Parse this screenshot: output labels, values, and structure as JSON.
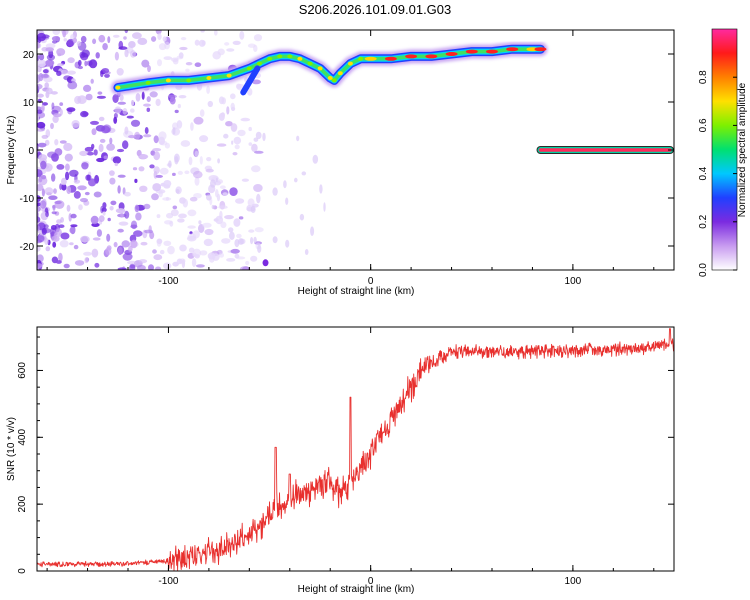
{
  "figure": {
    "title": "S206.2026.101.09.01.G03"
  },
  "chart_data": [
    {
      "type": "heatmap",
      "name": "spectrogram",
      "xlabel": "Height of straight line (km)",
      "ylabel": "Frequency (Hz)",
      "xlim": [
        -165,
        150
      ],
      "ylim": [
        -25,
        25
      ],
      "xticks": [
        -100,
        0,
        100
      ],
      "yticks": [
        -20,
        -10,
        0,
        10,
        20
      ],
      "colorbar": {
        "label": "Normalized spectral amplitude",
        "range": [
          0,
          1
        ],
        "ticks": [
          0.0,
          0.2,
          0.4,
          0.6,
          0.8
        ],
        "colors": [
          "#ffffff",
          "#c89bf0",
          "#7b2be0",
          "#2040ff",
          "#00c8ff",
          "#00e070",
          "#7ef000",
          "#ffe000",
          "#ff8000",
          "#ff1a1a",
          "#ff2aa0"
        ]
      },
      "ridge": {
        "x": [
          -125,
          -110,
          -100,
          -90,
          -80,
          -70,
          -60,
          -55,
          -50,
          -45,
          -40,
          -35,
          -30,
          -25,
          -20,
          -18,
          -15,
          -10,
          -5,
          0,
          10,
          20,
          30,
          40,
          50,
          60,
          70,
          80,
          84
        ],
        "y": [
          13,
          14,
          14.5,
          14.5,
          15,
          15.5,
          17,
          18,
          19,
          19.5,
          19.5,
          19,
          18,
          17,
          15,
          14.5,
          16,
          18,
          19,
          19,
          19,
          19.5,
          19.5,
          20,
          20.5,
          20.5,
          21,
          21,
          21
        ]
      },
      "line_feature": {
        "x_start": 84,
        "x_end": 148,
        "y": 0
      }
    },
    {
      "type": "line",
      "name": "snr",
      "xlabel": "Height of straight line (km)",
      "ylabel": "SNR (10 * v/v)",
      "xlim": [
        -165,
        150
      ],
      "ylim": [
        0,
        730
      ],
      "xticks": [
        -100,
        0,
        100
      ],
      "yticks": [
        0,
        200,
        400,
        600
      ],
      "color": "#e8302e",
      "trend": {
        "x": [
          -165,
          -120,
          -100,
          -80,
          -65,
          -55,
          -50,
          -45,
          -40,
          -30,
          -20,
          -15,
          -10,
          -5,
          0,
          5,
          10,
          15,
          20,
          25,
          30,
          35,
          40,
          50,
          70,
          100,
          130,
          150
        ],
        "y": [
          20,
          22,
          30,
          55,
          90,
          130,
          170,
          190,
          215,
          240,
          270,
          230,
          260,
          300,
          350,
          400,
          450,
          500,
          550,
          590,
          620,
          640,
          655,
          660,
          655,
          660,
          665,
          675
        ]
      },
      "spikes": [
        {
          "x": -47,
          "y": 370
        },
        {
          "x": -40,
          "y": 290
        },
        {
          "x": -10,
          "y": 520
        },
        {
          "x": 3,
          "y": 410
        },
        {
          "x": 148,
          "y": 725
        }
      ]
    }
  ]
}
